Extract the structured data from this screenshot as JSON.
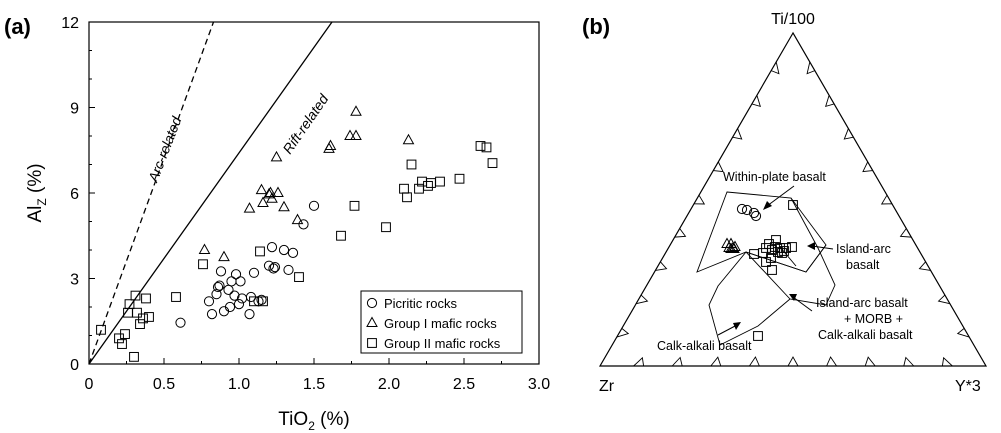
{
  "panels": {
    "a": {
      "label": "(a)",
      "xlabel_main": "TiO",
      "xlabel_sub": "2",
      "xlabel_unit": " (%)",
      "ylabel_main": "Al",
      "ylabel_sub": "Z",
      "ylabel_unit": " (%)"
    },
    "b": {
      "label": "(b)",
      "vertices": {
        "top": "Ti/100",
        "left": "Zr",
        "right": "Y*3"
      },
      "fields": {
        "within_plate": "Within-plate basalt",
        "island_arc_line1": "Island-arc",
        "island_arc_line2": "basalt",
        "combo_line1": "Island-arc basalt",
        "combo_line2": "+ MORB +",
        "combo_line3": "Calk-alkali basalt",
        "calk_alkali": "Calk-alkali basalt"
      }
    }
  },
  "chart_data": [
    {
      "type": "scatter",
      "panel": "(a)",
      "xlim": [
        0,
        3.0
      ],
      "ylim": [
        0,
        12
      ],
      "xticks": [
        "0",
        "0.5",
        "1.0",
        "1.5",
        "2.0",
        "2.5",
        "3.0"
      ],
      "yticks": [
        "0",
        "3",
        "6",
        "9",
        "12"
      ],
      "grid": false,
      "legend_position": "bottom-right",
      "reference_lines": [
        {
          "label": "Arc-related",
          "style": "dashed",
          "points": [
            [
              0,
              0
            ],
            [
              0.83,
              12
            ]
          ]
        },
        {
          "label": "Rift-related",
          "style": "solid",
          "points": [
            [
              0,
              0
            ],
            [
              1.62,
              12
            ]
          ]
        }
      ],
      "series": [
        {
          "name": "Picritic rocks",
          "marker": "circle",
          "points": [
            [
              0.61,
              1.45
            ],
            [
              0.8,
              2.2
            ],
            [
              0.82,
              1.75
            ],
            [
              0.85,
              2.45
            ],
            [
              0.86,
              2.7
            ],
            [
              0.87,
              2.75
            ],
            [
              0.88,
              3.25
            ],
            [
              0.9,
              1.85
            ],
            [
              0.93,
              2.6
            ],
            [
              0.94,
              2.0
            ],
            [
              0.95,
              2.9
            ],
            [
              0.97,
              2.4
            ],
            [
              0.98,
              3.15
            ],
            [
              1.0,
              2.1
            ],
            [
              1.01,
              2.9
            ],
            [
              1.02,
              2.3
            ],
            [
              1.07,
              1.75
            ],
            [
              1.08,
              2.35
            ],
            [
              1.1,
              3.2
            ],
            [
              1.13,
              2.2
            ],
            [
              1.15,
              2.25
            ],
            [
              1.2,
              3.45
            ],
            [
              1.22,
              4.1
            ],
            [
              1.23,
              3.35
            ],
            [
              1.24,
              3.4
            ],
            [
              1.3,
              4.0
            ],
            [
              1.33,
              3.3
            ],
            [
              1.36,
              3.9
            ],
            [
              1.43,
              4.9
            ],
            [
              1.5,
              5.55
            ]
          ]
        },
        {
          "name": "Group I mafic rocks",
          "marker": "triangle",
          "points": [
            [
              0.77,
              4.0
            ],
            [
              0.9,
              3.75
            ],
            [
              1.07,
              5.45
            ],
            [
              1.15,
              6.1
            ],
            [
              1.16,
              5.65
            ],
            [
              1.2,
              5.95
            ],
            [
              1.21,
              6.0
            ],
            [
              1.22,
              5.8
            ],
            [
              1.25,
              7.25
            ],
            [
              1.26,
              6.0
            ],
            [
              1.3,
              5.5
            ],
            [
              1.39,
              5.05
            ],
            [
              1.6,
              7.55
            ],
            [
              1.61,
              7.65
            ],
            [
              1.74,
              8.0
            ],
            [
              1.78,
              8.0
            ],
            [
              1.78,
              8.85
            ],
            [
              2.13,
              7.85
            ]
          ]
        },
        {
          "name": "Group II mafic rocks",
          "marker": "square",
          "points": [
            [
              0.08,
              1.2
            ],
            [
              0.2,
              0.9
            ],
            [
              0.22,
              0.7
            ],
            [
              0.24,
              1.05
            ],
            [
              0.26,
              1.8
            ],
            [
              0.27,
              2.1
            ],
            [
              0.3,
              0.25
            ],
            [
              0.31,
              2.4
            ],
            [
              0.32,
              1.8
            ],
            [
              0.34,
              1.4
            ],
            [
              0.36,
              1.6
            ],
            [
              0.38,
              2.3
            ],
            [
              0.4,
              1.65
            ],
            [
              0.58,
              2.35
            ],
            [
              0.76,
              3.5
            ],
            [
              1.1,
              2.2
            ],
            [
              1.14,
              3.95
            ],
            [
              1.16,
              2.2
            ],
            [
              1.4,
              3.05
            ],
            [
              1.68,
              4.5
            ],
            [
              1.77,
              5.55
            ],
            [
              1.98,
              4.8
            ],
            [
              2.1,
              6.15
            ],
            [
              2.12,
              5.85
            ],
            [
              2.15,
              7.0
            ],
            [
              2.2,
              6.15
            ],
            [
              2.22,
              6.4
            ],
            [
              2.26,
              6.25
            ],
            [
              2.28,
              6.35
            ],
            [
              2.34,
              6.4
            ],
            [
              2.47,
              6.5
            ],
            [
              2.61,
              7.65
            ],
            [
              2.65,
              7.6
            ],
            [
              2.69,
              7.05
            ]
          ]
        }
      ]
    },
    {
      "type": "scatter",
      "panel": "(b)",
      "diagram": "ternary Ti/100 – Zr – Y*3",
      "series": [
        {
          "name": "Picritic rocks",
          "marker": "circle",
          "points": [
            [
              0.0,
              0.0
            ]
          ]
        },
        {
          "name": "Group I mafic rocks",
          "marker": "triangle",
          "points": [
            [
              0.0,
              0.0
            ]
          ]
        },
        {
          "name": "Group II mafic rocks",
          "marker": "square",
          "points": [
            [
              0.0,
              0.0
            ]
          ]
        }
      ]
    }
  ]
}
